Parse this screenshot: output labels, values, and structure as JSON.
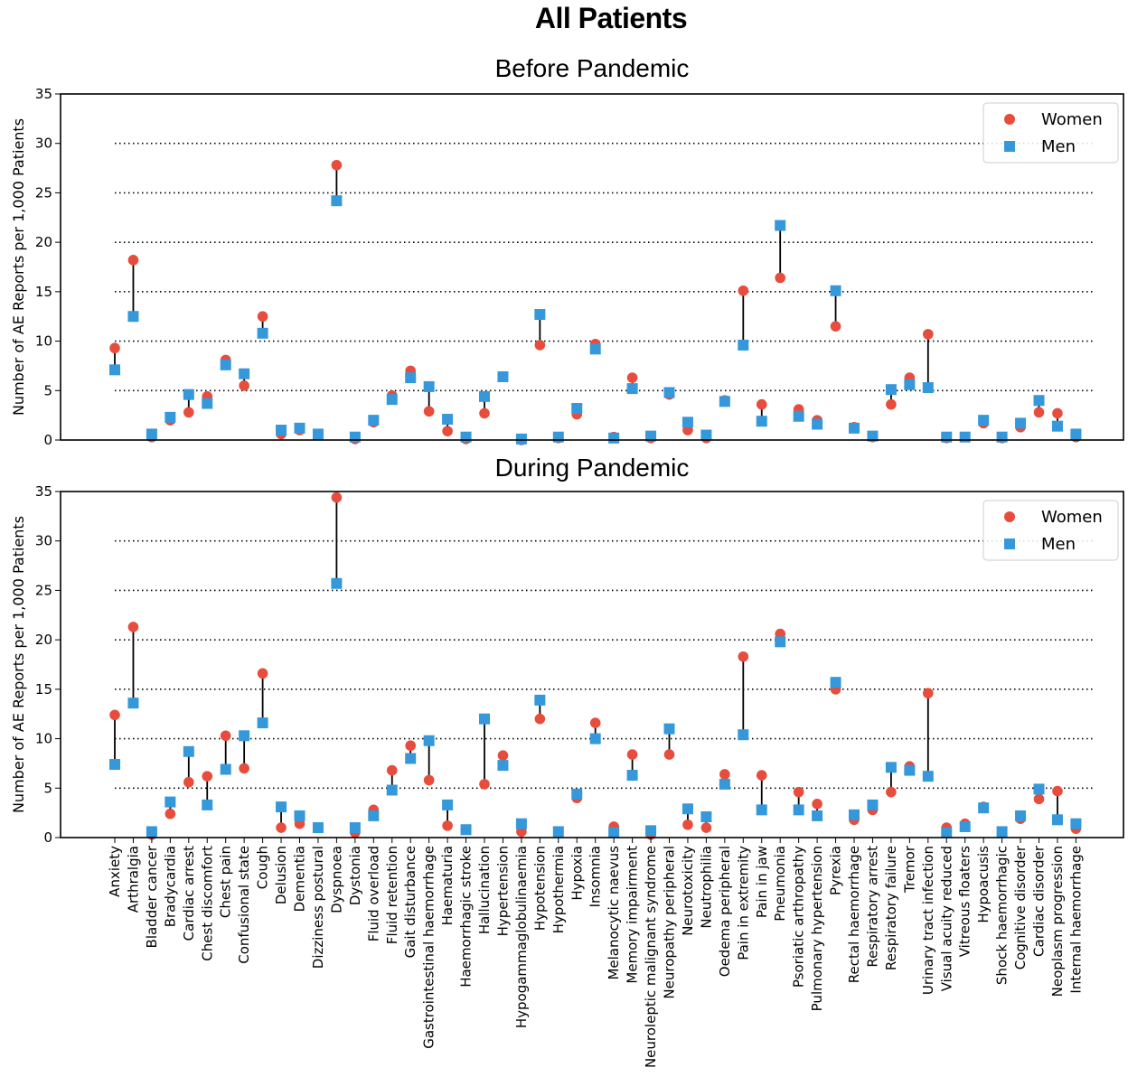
{
  "suptitle": "All Patients",
  "colors": {
    "women": "#e74c3c",
    "men": "#3498db"
  },
  "chart_data": {
    "type": "scatter",
    "ylabel": "Number of AE Reports per 1,000 Patients",
    "ylim": [
      0,
      35
    ],
    "yticks": [
      0,
      5,
      10,
      15,
      20,
      25,
      30,
      35
    ],
    "grid": "dotted horizontal at 5,10,15,20,25,30",
    "legend_position": "top-right",
    "categories": [
      "Anxiety",
      "Arthralgia",
      "Bladder cancer",
      "Bradycardia",
      "Cardiac arrest",
      "Chest discomfort",
      "Chest pain",
      "Confusional state",
      "Cough",
      "Delusion",
      "Dementia",
      "Dizziness postural",
      "Dyspnoea",
      "Dystonia",
      "Fluid overload",
      "Fluid retention",
      "Gait disturbance",
      "Gastrointestinal haemorrhage",
      "Haematuria",
      "Haemorrhagic stroke",
      "Hallucination",
      "Hypertension",
      "Hypogammaglobulinaemia",
      "Hypotension",
      "Hypothermia",
      "Hypoxia",
      "Insomnia",
      "Melanocytic naevus",
      "Memory impairment",
      "Neuroleptic malignant syndrome",
      "Neuropathy peripheral",
      "Neurotoxicity",
      "Neutrophilia",
      "Oedema peripheral",
      "Pain in extremity",
      "Pain in jaw",
      "Pneumonia",
      "Psoriatic arthropathy",
      "Pulmonary hypertension",
      "Pyrexia",
      "Rectal haemorrhage",
      "Respiratory arrest",
      "Respiratory failure",
      "Tremor",
      "Urinary tract infection",
      "Visual acuity reduced",
      "Vitreous floaters",
      "Hypoacusis",
      "Shock haemorrhagic",
      "Cognitive disorder",
      "Cardiac disorder",
      "Neoplasm progression",
      "Internal haemorrhage"
    ],
    "panels": [
      {
        "title": "Before Pandemic",
        "series": [
          {
            "name": "Women",
            "marker": "circle",
            "values": [
              9.3,
              18.2,
              0.3,
              2.0,
              2.8,
              4.4,
              8.1,
              5.5,
              12.5,
              0.6,
              1.0,
              0.5,
              27.8,
              0.1,
              1.8,
              4.5,
              7.0,
              2.9,
              0.9,
              0.1,
              2.7,
              6.4,
              0.0,
              9.6,
              0.2,
              2.6,
              9.7,
              0.3,
              6.3,
              0.2,
              4.6,
              1.0,
              0.2,
              4.0,
              15.1,
              3.6,
              16.4,
              3.1,
              2.0,
              11.5,
              1.3,
              0.3,
              3.6,
              6.3,
              10.7,
              0.2,
              0.3,
              1.7,
              0.2,
              1.3,
              2.8,
              2.7,
              0.3
            ]
          },
          {
            "name": "Men",
            "marker": "square",
            "values": [
              7.1,
              12.5,
              0.6,
              2.3,
              4.6,
              3.7,
              7.6,
              6.7,
              10.8,
              1.0,
              1.2,
              0.6,
              24.2,
              0.3,
              2.0,
              4.1,
              6.3,
              5.4,
              2.1,
              0.3,
              4.4,
              6.4,
              0.1,
              12.7,
              0.3,
              3.2,
              9.2,
              0.2,
              5.2,
              0.4,
              4.8,
              1.8,
              0.5,
              3.9,
              9.6,
              1.9,
              21.7,
              2.4,
              1.6,
              15.1,
              1.2,
              0.4,
              5.1,
              5.6,
              5.3,
              0.3,
              0.3,
              2.0,
              0.3,
              1.7,
              4.0,
              1.4,
              0.6
            ]
          }
        ]
      },
      {
        "title": "During Pandemic",
        "series": [
          {
            "name": "Women",
            "marker": "circle",
            "values": [
              12.4,
              21.3,
              0.3,
              2.4,
              5.6,
              6.2,
              10.3,
              7.0,
              16.6,
              1.0,
              1.4,
              1.0,
              34.4,
              0.5,
              2.8,
              6.8,
              9.3,
              5.8,
              1.2,
              0.8,
              5.4,
              8.3,
              0.6,
              12.0,
              0.6,
              4.0,
              11.6,
              1.1,
              8.4,
              0.3,
              8.4,
              1.3,
              1.0,
              6.4,
              18.3,
              6.3,
              20.6,
              4.6,
              3.4,
              15.0,
              1.8,
              2.8,
              4.6,
              7.2,
              14.6,
              1.0,
              1.4,
              3.1,
              0.5,
              1.9,
              3.9,
              4.7,
              0.9
            ]
          },
          {
            "name": "Men",
            "marker": "square",
            "values": [
              7.4,
              13.6,
              0.6,
              3.6,
              8.7,
              3.3,
              6.9,
              10.3,
              11.6,
              3.1,
              2.2,
              1.0,
              25.7,
              1.0,
              2.2,
              4.8,
              8.0,
              9.8,
              3.3,
              0.8,
              12.0,
              7.3,
              1.4,
              13.9,
              0.6,
              4.4,
              10.0,
              0.5,
              6.3,
              0.7,
              11.0,
              2.9,
              2.1,
              5.4,
              10.4,
              2.8,
              19.8,
              2.8,
              2.2,
              15.7,
              2.3,
              3.3,
              7.1,
              6.8,
              6.2,
              0.5,
              1.1,
              3.0,
              0.6,
              2.2,
              4.9,
              1.8,
              1.4
            ]
          }
        ]
      }
    ]
  }
}
